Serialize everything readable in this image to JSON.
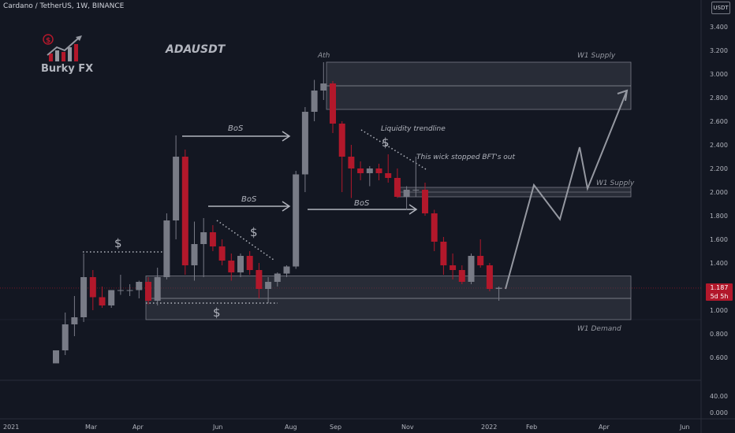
{
  "header": {
    "symbol_title": "Cardano / TetherUS, 1W, BINANCE"
  },
  "branding": {
    "logo_text": "Burky FX",
    "ticker": "ADAUSDT"
  },
  "price_axis": {
    "currency_label": "USDT",
    "last_price": "1.187",
    "countdown": "5d 5h"
  },
  "annotations": {
    "ath": "Ath",
    "w1_supply_top": "W1 Supply",
    "w1_supply_mid": "W1 Supply",
    "w1_demand": "W1 Demand",
    "bos_1": "BoS",
    "bos_2": "BoS",
    "bos_3": "BoS",
    "liquidity_trendline": "Liquidity trendline",
    "wick_note": "This wick stopped BFT's out",
    "dollar_1": "$",
    "dollar_2": "$",
    "dollar_3": "$",
    "dollar_4": "$"
  },
  "colors": {
    "up": "#787b86",
    "down": "#b2182b",
    "zone": "#434651",
    "bg": "#131722"
  },
  "chart_data": {
    "type": "candlestick",
    "title": "Cardano / TetherUS, 1W, BINANCE",
    "y_scale": "price",
    "y_ticks": [
      "3.400",
      "3.200",
      "3.000",
      "2.800",
      "2.600",
      "2.400",
      "2.200",
      "2.000",
      "1.800",
      "1.600",
      "1.400",
      "1.200",
      "1.000",
      "0.800",
      "0.600"
    ],
    "lower_y_ticks": [
      "40.00",
      "0.000"
    ],
    "x_ticks": [
      "2021",
      "Mar",
      "Apr",
      "Jun",
      "Aug",
      "Sep",
      "Nov",
      "2022",
      "Feb",
      "Apr",
      "Jun"
    ],
    "candles": [
      {
        "o": 0.55,
        "h": 0.66,
        "l": 0.55,
        "c": 0.66
      },
      {
        "o": 0.66,
        "h": 0.98,
        "l": 0.62,
        "c": 0.88
      },
      {
        "o": 0.88,
        "h": 1.12,
        "l": 0.78,
        "c": 0.94
      },
      {
        "o": 0.94,
        "h": 1.48,
        "l": 0.9,
        "c": 1.28
      },
      {
        "o": 1.28,
        "h": 1.34,
        "l": 1.0,
        "c": 1.11
      },
      {
        "o": 1.11,
        "h": 1.2,
        "l": 1.02,
        "c": 1.04
      },
      {
        "o": 1.04,
        "h": 1.16,
        "l": 1.02,
        "c": 1.17
      },
      {
        "o": 1.17,
        "h": 1.3,
        "l": 1.13,
        "c": 1.17
      },
      {
        "o": 1.17,
        "h": 1.22,
        "l": 1.12,
        "c": 1.17
      },
      {
        "o": 1.17,
        "h": 1.25,
        "l": 1.1,
        "c": 1.24
      },
      {
        "o": 1.24,
        "h": 1.28,
        "l": 1.05,
        "c": 1.08
      },
      {
        "o": 1.08,
        "h": 1.36,
        "l": 1.04,
        "c": 1.28
      },
      {
        "o": 1.28,
        "h": 1.82,
        "l": 1.26,
        "c": 1.76
      },
      {
        "o": 1.76,
        "h": 2.48,
        "l": 1.6,
        "c": 2.3
      },
      {
        "o": 2.3,
        "h": 2.36,
        "l": 1.3,
        "c": 1.38
      },
      {
        "o": 1.38,
        "h": 1.75,
        "l": 1.25,
        "c": 1.56
      },
      {
        "o": 1.56,
        "h": 1.78,
        "l": 1.28,
        "c": 1.66
      },
      {
        "o": 1.66,
        "h": 1.72,
        "l": 1.5,
        "c": 1.54
      },
      {
        "o": 1.54,
        "h": 1.6,
        "l": 1.38,
        "c": 1.42
      },
      {
        "o": 1.42,
        "h": 1.48,
        "l": 1.25,
        "c": 1.32
      },
      {
        "o": 1.32,
        "h": 1.48,
        "l": 1.28,
        "c": 1.46
      },
      {
        "o": 1.46,
        "h": 1.5,
        "l": 1.3,
        "c": 1.34
      },
      {
        "o": 1.34,
        "h": 1.4,
        "l": 1.1,
        "c": 1.18
      },
      {
        "o": 1.18,
        "h": 1.28,
        "l": 1.06,
        "c": 1.24
      },
      {
        "o": 1.24,
        "h": 1.32,
        "l": 1.2,
        "c": 1.31
      },
      {
        "o": 1.31,
        "h": 1.38,
        "l": 1.28,
        "c": 1.37
      },
      {
        "o": 1.37,
        "h": 2.18,
        "l": 1.35,
        "c": 2.15
      },
      {
        "o": 2.15,
        "h": 2.72,
        "l": 2.0,
        "c": 2.68
      },
      {
        "o": 2.68,
        "h": 2.95,
        "l": 2.6,
        "c": 2.86
      },
      {
        "o": 2.86,
        "h": 3.1,
        "l": 2.78,
        "c": 2.92
      },
      {
        "o": 2.92,
        "h": 2.94,
        "l": 2.5,
        "c": 2.58
      },
      {
        "o": 2.58,
        "h": 2.6,
        "l": 2.0,
        "c": 2.3
      },
      {
        "o": 2.3,
        "h": 2.4,
        "l": 1.95,
        "c": 2.2
      },
      {
        "o": 2.2,
        "h": 2.26,
        "l": 2.1,
        "c": 2.16
      },
      {
        "o": 2.16,
        "h": 2.22,
        "l": 2.05,
        "c": 2.2
      },
      {
        "o": 2.2,
        "h": 2.24,
        "l": 2.1,
        "c": 2.16
      },
      {
        "o": 2.16,
        "h": 2.32,
        "l": 2.08,
        "c": 2.12
      },
      {
        "o": 2.12,
        "h": 2.2,
        "l": 1.95,
        "c": 1.96
      },
      {
        "o": 1.96,
        "h": 2.05,
        "l": 1.85,
        "c": 2.02
      },
      {
        "o": 2.02,
        "h": 2.3,
        "l": 1.96,
        "c": 2.02
      },
      {
        "o": 2.02,
        "h": 2.08,
        "l": 1.8,
        "c": 1.82
      },
      {
        "o": 1.82,
        "h": 1.85,
        "l": 1.5,
        "c": 1.58
      },
      {
        "o": 1.58,
        "h": 1.62,
        "l": 1.3,
        "c": 1.38
      },
      {
        "o": 1.38,
        "h": 1.48,
        "l": 1.26,
        "c": 1.34
      },
      {
        "o": 1.34,
        "h": 1.38,
        "l": 1.22,
        "c": 1.24
      },
      {
        "o": 1.24,
        "h": 1.48,
        "l": 1.22,
        "c": 1.46
      },
      {
        "o": 1.46,
        "h": 1.6,
        "l": 1.36,
        "c": 1.38
      },
      {
        "o": 1.38,
        "h": 1.4,
        "l": 1.16,
        "c": 1.18
      },
      {
        "o": 1.18,
        "h": 1.2,
        "l": 1.08,
        "c": 1.19
      }
    ],
    "zones": [
      {
        "label": "W1 Supply",
        "from": 2.7,
        "to": 3.1
      },
      {
        "label": "W1 Supply",
        "from": 1.96,
        "to": 2.04
      },
      {
        "label": "W1 Demand",
        "from": 0.92,
        "to": 1.29
      }
    ],
    "horizontal_levels": [
      1.187,
      0.92
    ],
    "projection_path": [
      1.18,
      2.06,
      1.77,
      2.38,
      2.03,
      2.86
    ]
  }
}
